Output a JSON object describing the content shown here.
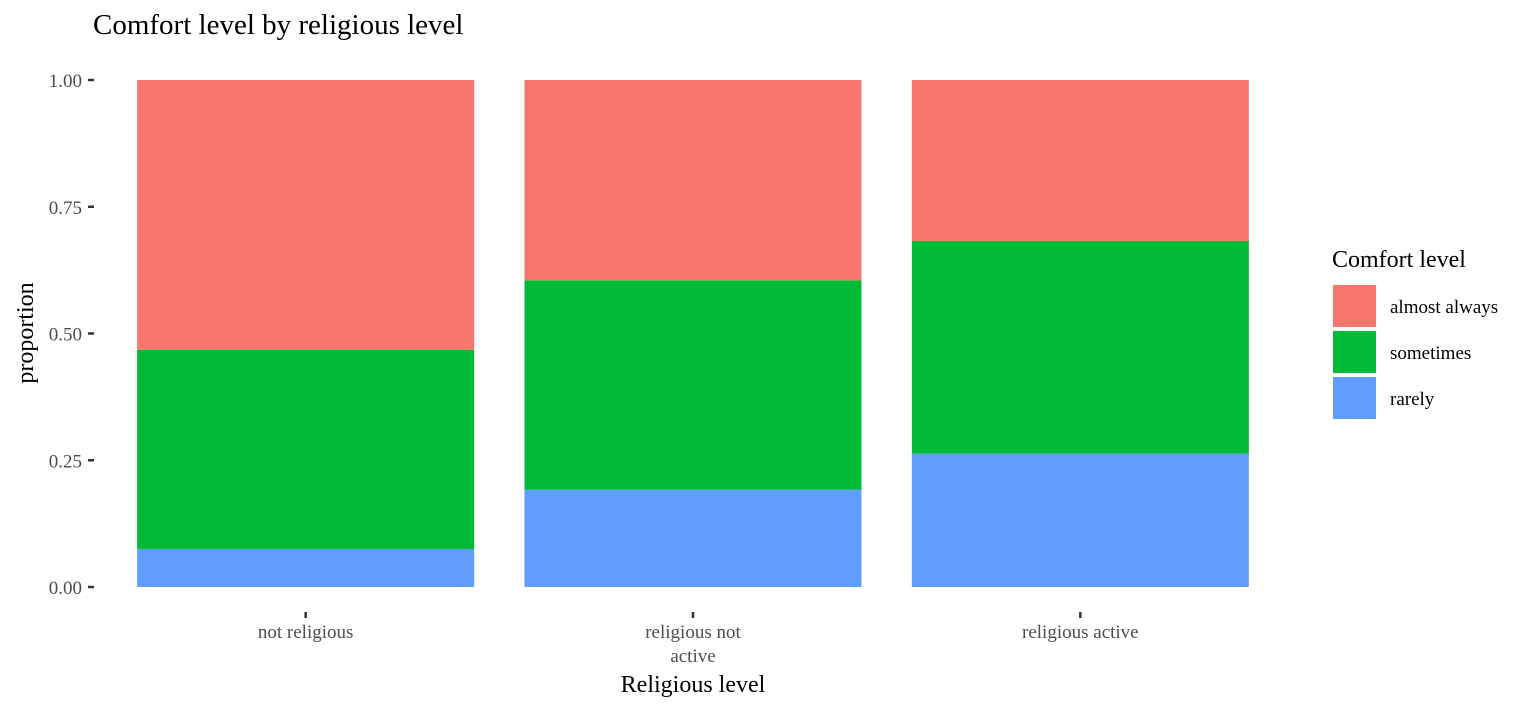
{
  "chart_data": {
    "type": "bar",
    "stacked": true,
    "title": "Comfort level by religious level",
    "xlabel": "Religious level",
    "ylabel": "proportion",
    "ylim": [
      0,
      1
    ],
    "yticks": [
      "0.00",
      "0.25",
      "0.50",
      "0.75",
      "1.00"
    ],
    "categories": [
      [
        "not religious"
      ],
      [
        "religious not",
        "active"
      ],
      [
        "religious active"
      ]
    ],
    "series": [
      {
        "name": "rarely",
        "color": "#619CFF",
        "values": [
          0.075,
          0.192,
          0.263
        ]
      },
      {
        "name": "sometimes",
        "color": "#00BA38",
        "values": [
          0.393,
          0.413,
          0.42
        ]
      },
      {
        "name": "almost always",
        "color": "#F8766D",
        "values": [
          0.532,
          0.395,
          0.317
        ]
      }
    ],
    "legend": {
      "title": "Comfort level",
      "position": "right",
      "order": [
        "almost always",
        "sometimes",
        "rarely"
      ]
    },
    "grid": false
  }
}
